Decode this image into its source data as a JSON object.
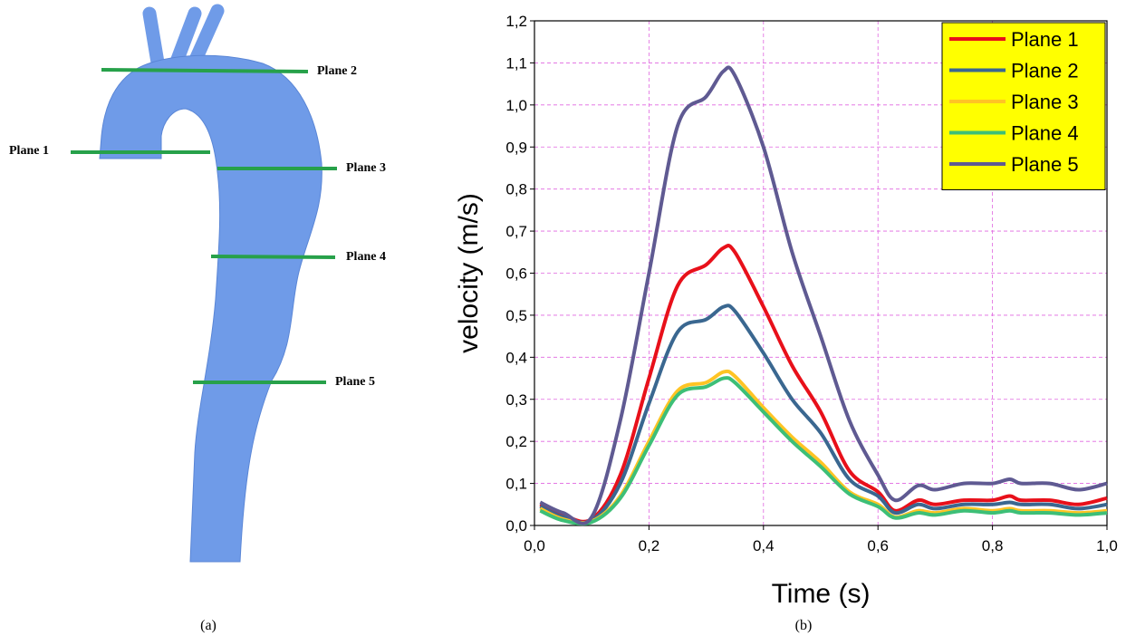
{
  "diagram": {
    "plane_labels": [
      "Plane 1",
      "Plane 2",
      "Plane 3",
      "Plane 4",
      "Plane 5"
    ],
    "caption": "(a)"
  },
  "chart_data": {
    "type": "line",
    "caption": "(b)",
    "x_label": "Time (s)",
    "y_label": "velocity (m/s)",
    "x": [
      0.01,
      0.05,
      0.1,
      0.15,
      0.2,
      0.25,
      0.3,
      0.33,
      0.35,
      0.4,
      0.45,
      0.5,
      0.55,
      0.6,
      0.63,
      0.67,
      0.7,
      0.75,
      0.8,
      0.83,
      0.85,
      0.9,
      0.95,
      1.0
    ],
    "series": [
      {
        "name": "Plane 1",
        "color": "#e8101a",
        "values": [
          0.05,
          0.025,
          0.015,
          0.12,
          0.35,
          0.57,
          0.62,
          0.66,
          0.65,
          0.52,
          0.38,
          0.27,
          0.13,
          0.08,
          0.035,
          0.06,
          0.05,
          0.06,
          0.06,
          0.07,
          0.06,
          0.06,
          0.05,
          0.065
        ]
      },
      {
        "name": "Plane 2",
        "color": "#3a6790",
        "values": [
          0.045,
          0.02,
          0.012,
          0.1,
          0.29,
          0.46,
          0.49,
          0.52,
          0.51,
          0.41,
          0.3,
          0.22,
          0.11,
          0.07,
          0.03,
          0.05,
          0.04,
          0.05,
          0.05,
          0.055,
          0.05,
          0.05,
          0.04,
          0.05
        ]
      },
      {
        "name": "Plane 3",
        "color": "#ffc424",
        "values": [
          0.04,
          0.015,
          0.01,
          0.07,
          0.2,
          0.32,
          0.34,
          0.365,
          0.355,
          0.28,
          0.21,
          0.15,
          0.08,
          0.05,
          0.02,
          0.035,
          0.03,
          0.04,
          0.035,
          0.04,
          0.035,
          0.035,
          0.03,
          0.035
        ]
      },
      {
        "name": "Plane 4",
        "color": "#3dbf77",
        "values": [
          0.035,
          0.012,
          0.008,
          0.065,
          0.19,
          0.31,
          0.33,
          0.35,
          0.34,
          0.27,
          0.2,
          0.14,
          0.075,
          0.045,
          0.018,
          0.03,
          0.025,
          0.035,
          0.03,
          0.035,
          0.03,
          0.03,
          0.025,
          0.03
        ]
      },
      {
        "name": "Plane 5",
        "color": "#5f5a92",
        "values": [
          0.055,
          0.03,
          0.02,
          0.25,
          0.6,
          0.95,
          1.02,
          1.08,
          1.07,
          0.9,
          0.65,
          0.45,
          0.25,
          0.12,
          0.06,
          0.095,
          0.085,
          0.1,
          0.1,
          0.11,
          0.1,
          0.1,
          0.085,
          0.1
        ]
      }
    ],
    "xlim": [
      0,
      1
    ],
    "xticks": [
      {
        "value": 0,
        "label": "0,0"
      },
      {
        "value": 0.2,
        "label": "0,2"
      },
      {
        "value": 0.4,
        "label": "0,4"
      },
      {
        "value": 0.6,
        "label": "0,6"
      },
      {
        "value": 0.8,
        "label": "0,8"
      },
      {
        "value": 1,
        "label": "1,0"
      }
    ],
    "ylim": [
      0,
      1.2
    ],
    "yticks": [
      {
        "value": 0,
        "label": "0,0"
      },
      {
        "value": 0.1,
        "label": "0,1"
      },
      {
        "value": 0.2,
        "label": "0,2"
      },
      {
        "value": 0.3,
        "label": "0,3"
      },
      {
        "value": 0.4,
        "label": "0,4"
      },
      {
        "value": 0.5,
        "label": "0,5"
      },
      {
        "value": 0.6,
        "label": "0,6"
      },
      {
        "value": 0.7,
        "label": "0,7"
      },
      {
        "value": 0.8,
        "label": "0,8"
      },
      {
        "value": 0.9,
        "label": "0,9"
      },
      {
        "value": 1,
        "label": "1,0"
      },
      {
        "value": 1.1,
        "label": "1,1"
      },
      {
        "value": 1.2,
        "label": "1,2"
      }
    ],
    "grid": true,
    "legend": "top-right"
  }
}
